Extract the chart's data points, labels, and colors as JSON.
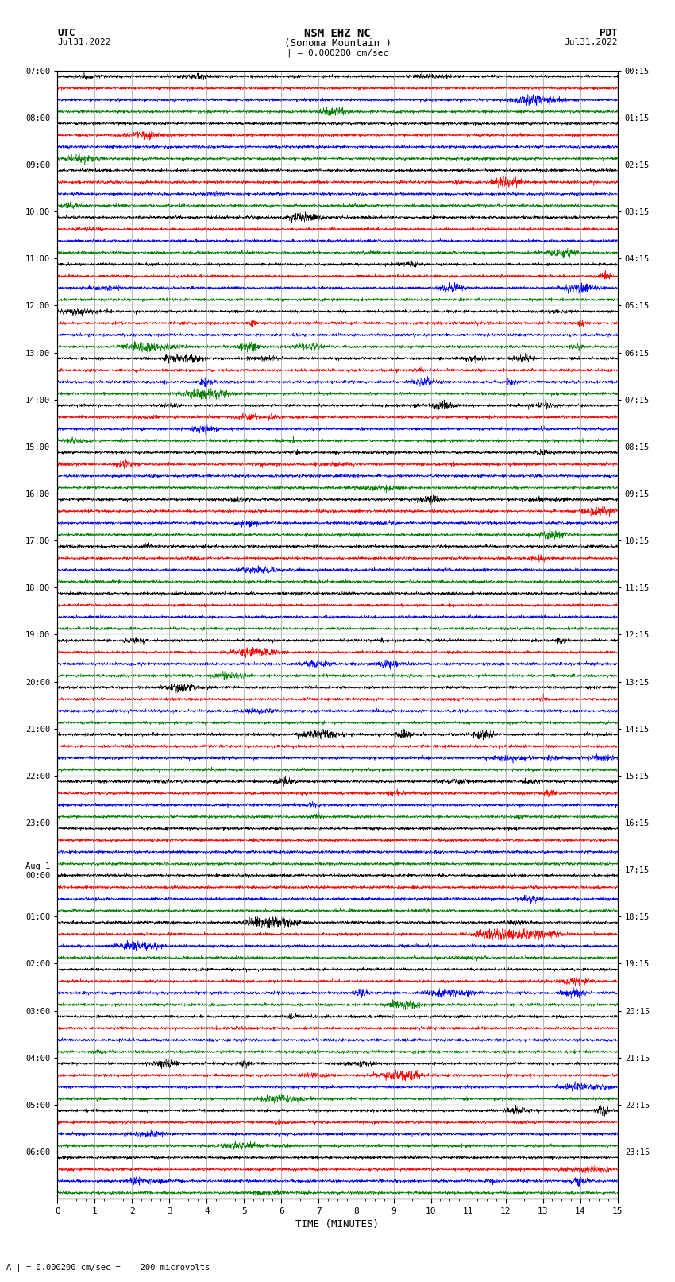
{
  "title_line1": "NSM EHZ NC",
  "title_line2": "(Sonoma Mountain )",
  "scale_label": "| = 0.000200 cm/sec",
  "left_header": "UTC",
  "left_date": "Jul31,2022",
  "right_header": "PDT",
  "right_date": "Jul31,2022",
  "xlabel": "TIME (MINUTES)",
  "bottom_note": "A | = 0.000200 cm/sec =    200 microvolts",
  "utc_hour_labels": [
    "07:00",
    "08:00",
    "09:00",
    "10:00",
    "11:00",
    "12:00",
    "13:00",
    "14:00",
    "15:00",
    "16:00",
    "17:00",
    "18:00",
    "19:00",
    "20:00",
    "21:00",
    "22:00",
    "23:00",
    "Aug 1\n00:00",
    "01:00",
    "02:00",
    "03:00",
    "04:00",
    "05:00",
    "06:00"
  ],
  "pdt_hour_labels": [
    "00:15",
    "01:15",
    "02:15",
    "03:15",
    "04:15",
    "05:15",
    "06:15",
    "07:15",
    "08:15",
    "09:15",
    "10:15",
    "11:15",
    "12:15",
    "13:15",
    "14:15",
    "15:15",
    "16:15",
    "17:15",
    "18:15",
    "19:15",
    "20:15",
    "21:15",
    "22:15",
    "23:15"
  ],
  "colors": [
    "black",
    "red",
    "blue",
    "green"
  ],
  "n_rows": 96,
  "n_hour_groups": 24,
  "rows_per_group": 4,
  "x_min": 0,
  "x_max": 15,
  "n_minor_ticks_per_min": 4,
  "fig_width": 8.5,
  "fig_height": 16.13,
  "dpi": 100
}
